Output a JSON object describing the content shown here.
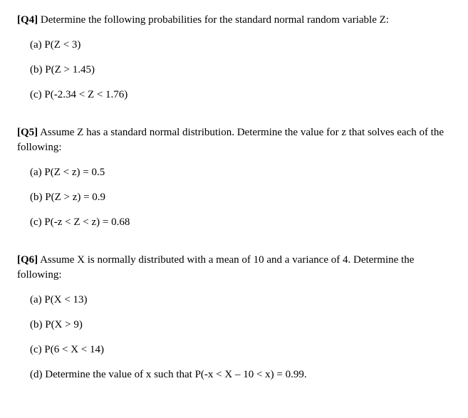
{
  "q4": {
    "label": "[Q4]",
    "intro": " Determine the following probabilities for the standard normal random variable Z:",
    "a_label": "(a)  P(Z < 3)",
    "b_label": "(b)  P(Z  > 1.45)",
    "c_label": "(c)  P(-2.34 < Z < 1.76)"
  },
  "q5": {
    "label": "[Q5]",
    "intro": " Assume Z has a standard normal distribution. Determine the value for z that solves each of the following:",
    "a_label": "(a)  P(Z < z) = 0.5",
    "b_label": "(b)  P(Z > z) = 0.9",
    "c_label": "(c)  P(-z < Z < z) = 0.68"
  },
  "q6": {
    "label": "[Q6]",
    "intro": " Assume X is normally distributed with a mean of 10 and a variance of 4. Determine the following:",
    "a_label": "(a)  P(X < 13)",
    "b_label": "(b)  P(X > 9)",
    "c_label": "(c)  P(6 < X < 14)",
    "d_label": "(d)  Determine the value of x such that P(-x < X – 10 < x) = 0.99."
  }
}
